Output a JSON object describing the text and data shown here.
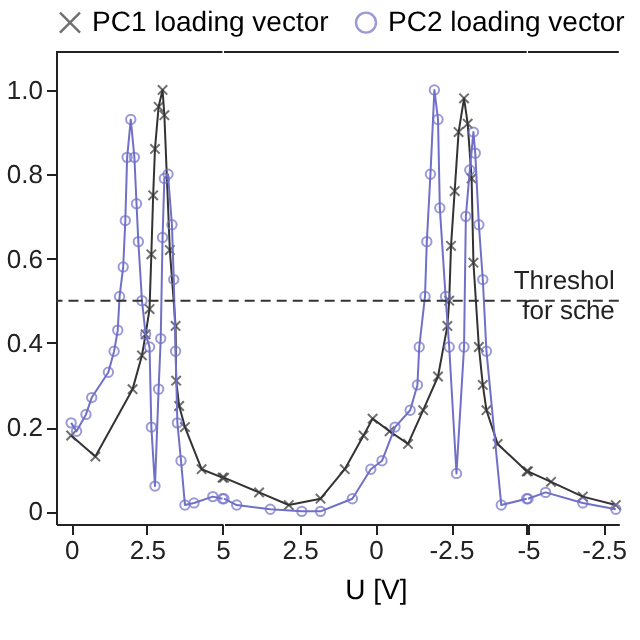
{
  "chart_data": [
    {
      "type": "line",
      "legend": "top",
      "xlim": [
        -0.5,
        5
      ],
      "ylim": [
        -0.03,
        1.09
      ],
      "xticks": [
        0,
        2.5,
        5
      ],
      "yticks": [
        0,
        0.2,
        0.4,
        0.6,
        0.8,
        {
          "value": 1,
          "label": "1.0"
        }
      ],
      "ref_lines": [
        {
          "axis": "y",
          "value": 0.5,
          "line_style": "dashed",
          "color": "#333333"
        }
      ],
      "series": [
        {
          "name": "PC1 loading vector",
          "color": "#333333",
          "marker": "cross",
          "x": [
            0,
            0.8,
            2.03,
            2.34,
            2.46,
            2.59,
            2.65,
            2.71,
            2.77,
            2.89,
            3.02,
            3.08,
            3.26,
            3.45,
            3.47,
            3.57,
            3.76,
            4.31,
            5
          ],
          "values": [
            0.18,
            0.13,
            0.29,
            0.37,
            0.42,
            0.48,
            0.61,
            0.75,
            0.86,
            0.96,
            1.0,
            0.94,
            0.62,
            0.44,
            0.31,
            0.25,
            0.2,
            0.1,
            0.08
          ]
        },
        {
          "name": "PC2 loading vector",
          "color": "#7070c8",
          "marker": "circle",
          "x": [
            0,
            0.18,
            0.49,
            0.68,
            1.23,
            1.42,
            1.54,
            1.6,
            1.72,
            1.79,
            1.85,
            1.97,
            2.09,
            2.16,
            2.22,
            2.34,
            2.46,
            2.59,
            2.65,
            2.77,
            2.89,
            2.96,
            3.02,
            3.08,
            3.2,
            3.33,
            3.39,
            3.45,
            3.51,
            3.63,
            3.76,
            4.06,
            4.68,
            5
          ],
          "values": [
            0.21,
            0.19,
            0.23,
            0.27,
            0.33,
            0.38,
            0.43,
            0.51,
            0.58,
            0.69,
            0.84,
            0.93,
            0.84,
            0.73,
            0.64,
            0.5,
            0.42,
            0.39,
            0.2,
            0.06,
            0.29,
            0.41,
            0.65,
            0.79,
            0.8,
            0.68,
            0.55,
            0.38,
            0.21,
            0.12,
            0.015,
            0.02,
            0.035,
            0.03
          ]
        }
      ]
    },
    {
      "type": "line",
      "xlabel": "U [V]",
      "tick_labels": "x",
      "xlim": [
        5,
        -5
      ],
      "ylim": [
        -0.03,
        1.09
      ],
      "xticks": [
        2.5,
        0,
        -2.5,
        {
          "value": -5,
          "label": null
        }
      ],
      "ref_lines": [
        {
          "axis": "y",
          "value": 0.5,
          "line_style": "dashed",
          "color": "#333333"
        }
      ],
      "series": [
        {
          "color": "#333333",
          "marker": "cross",
          "x": [
            5,
            3.84,
            2.86,
            1.81,
            1.01,
            0.39,
            0.09,
            -0.47,
            -1.08,
            -1.58,
            -2.07,
            -2.38,
            -2.44,
            -2.5,
            -2.62,
            -2.75,
            -2.93,
            -3.05,
            -3.18,
            -3.24,
            -3.42,
            -3.55,
            -3.67,
            -4.04,
            -5
          ],
          "values": [
            0.08,
            0.045,
            0.015,
            0.03,
            0.1,
            0.18,
            0.22,
            0.19,
            0.16,
            0.24,
            0.32,
            0.44,
            0.5,
            0.63,
            0.76,
            0.9,
            0.98,
            0.92,
            0.79,
            0.59,
            0.39,
            0.3,
            0.24,
            0.16,
            0.095
          ]
        },
        {
          "color": "#7070c8",
          "marker": "circle",
          "x": [
            5,
            4.58,
            3.47,
            2.43,
            1.81,
            0.76,
            0.15,
            -0.22,
            -0.65,
            -1.15,
            -1.39,
            -1.45,
            -1.64,
            -1.7,
            -1.82,
            -1.95,
            -2.07,
            -2.13,
            -2.32,
            -2.44,
            -2.68,
            -2.93,
            -2.99,
            -3.12,
            -3.24,
            -3.3,
            -3.42,
            -3.55,
            -3.67,
            -4.16,
            -5
          ],
          "values": [
            0.03,
            0.015,
            0.005,
            0,
            0,
            0.03,
            0.1,
            0.12,
            0.2,
            0.24,
            0.3,
            0.39,
            0.51,
            0.64,
            0.8,
            1.0,
            0.93,
            0.72,
            0.51,
            0.39,
            0.09,
            0.39,
            0.7,
            0.81,
            0.9,
            0.85,
            0.68,
            0.55,
            0.38,
            0.015,
            0.03
          ]
        }
      ]
    },
    {
      "type": "line",
      "tick_labels": "x",
      "xlim": [
        -5,
        -2
      ],
      "ylim": [
        -0.03,
        1.09
      ],
      "xticks": [
        -5,
        -2.5
      ],
      "ref_lines": [
        {
          "axis": "y",
          "value": 0.5,
          "label": "Threshol for sche",
          "line_style": "dashed",
          "color": "#333333"
        }
      ],
      "series": [
        {
          "color": "#333333",
          "marker": "cross",
          "x": [
            -5,
            -4.24,
            -3.19,
            -2.1
          ],
          "values": [
            0.095,
            0.07,
            0.035,
            0.015
          ]
        },
        {
          "color": "#7070c8",
          "marker": "circle",
          "x": [
            -5,
            -4.42,
            -3.19,
            -2.1
          ],
          "values": [
            0.03,
            0.045,
            0.02,
            0.005
          ]
        }
      ]
    }
  ]
}
